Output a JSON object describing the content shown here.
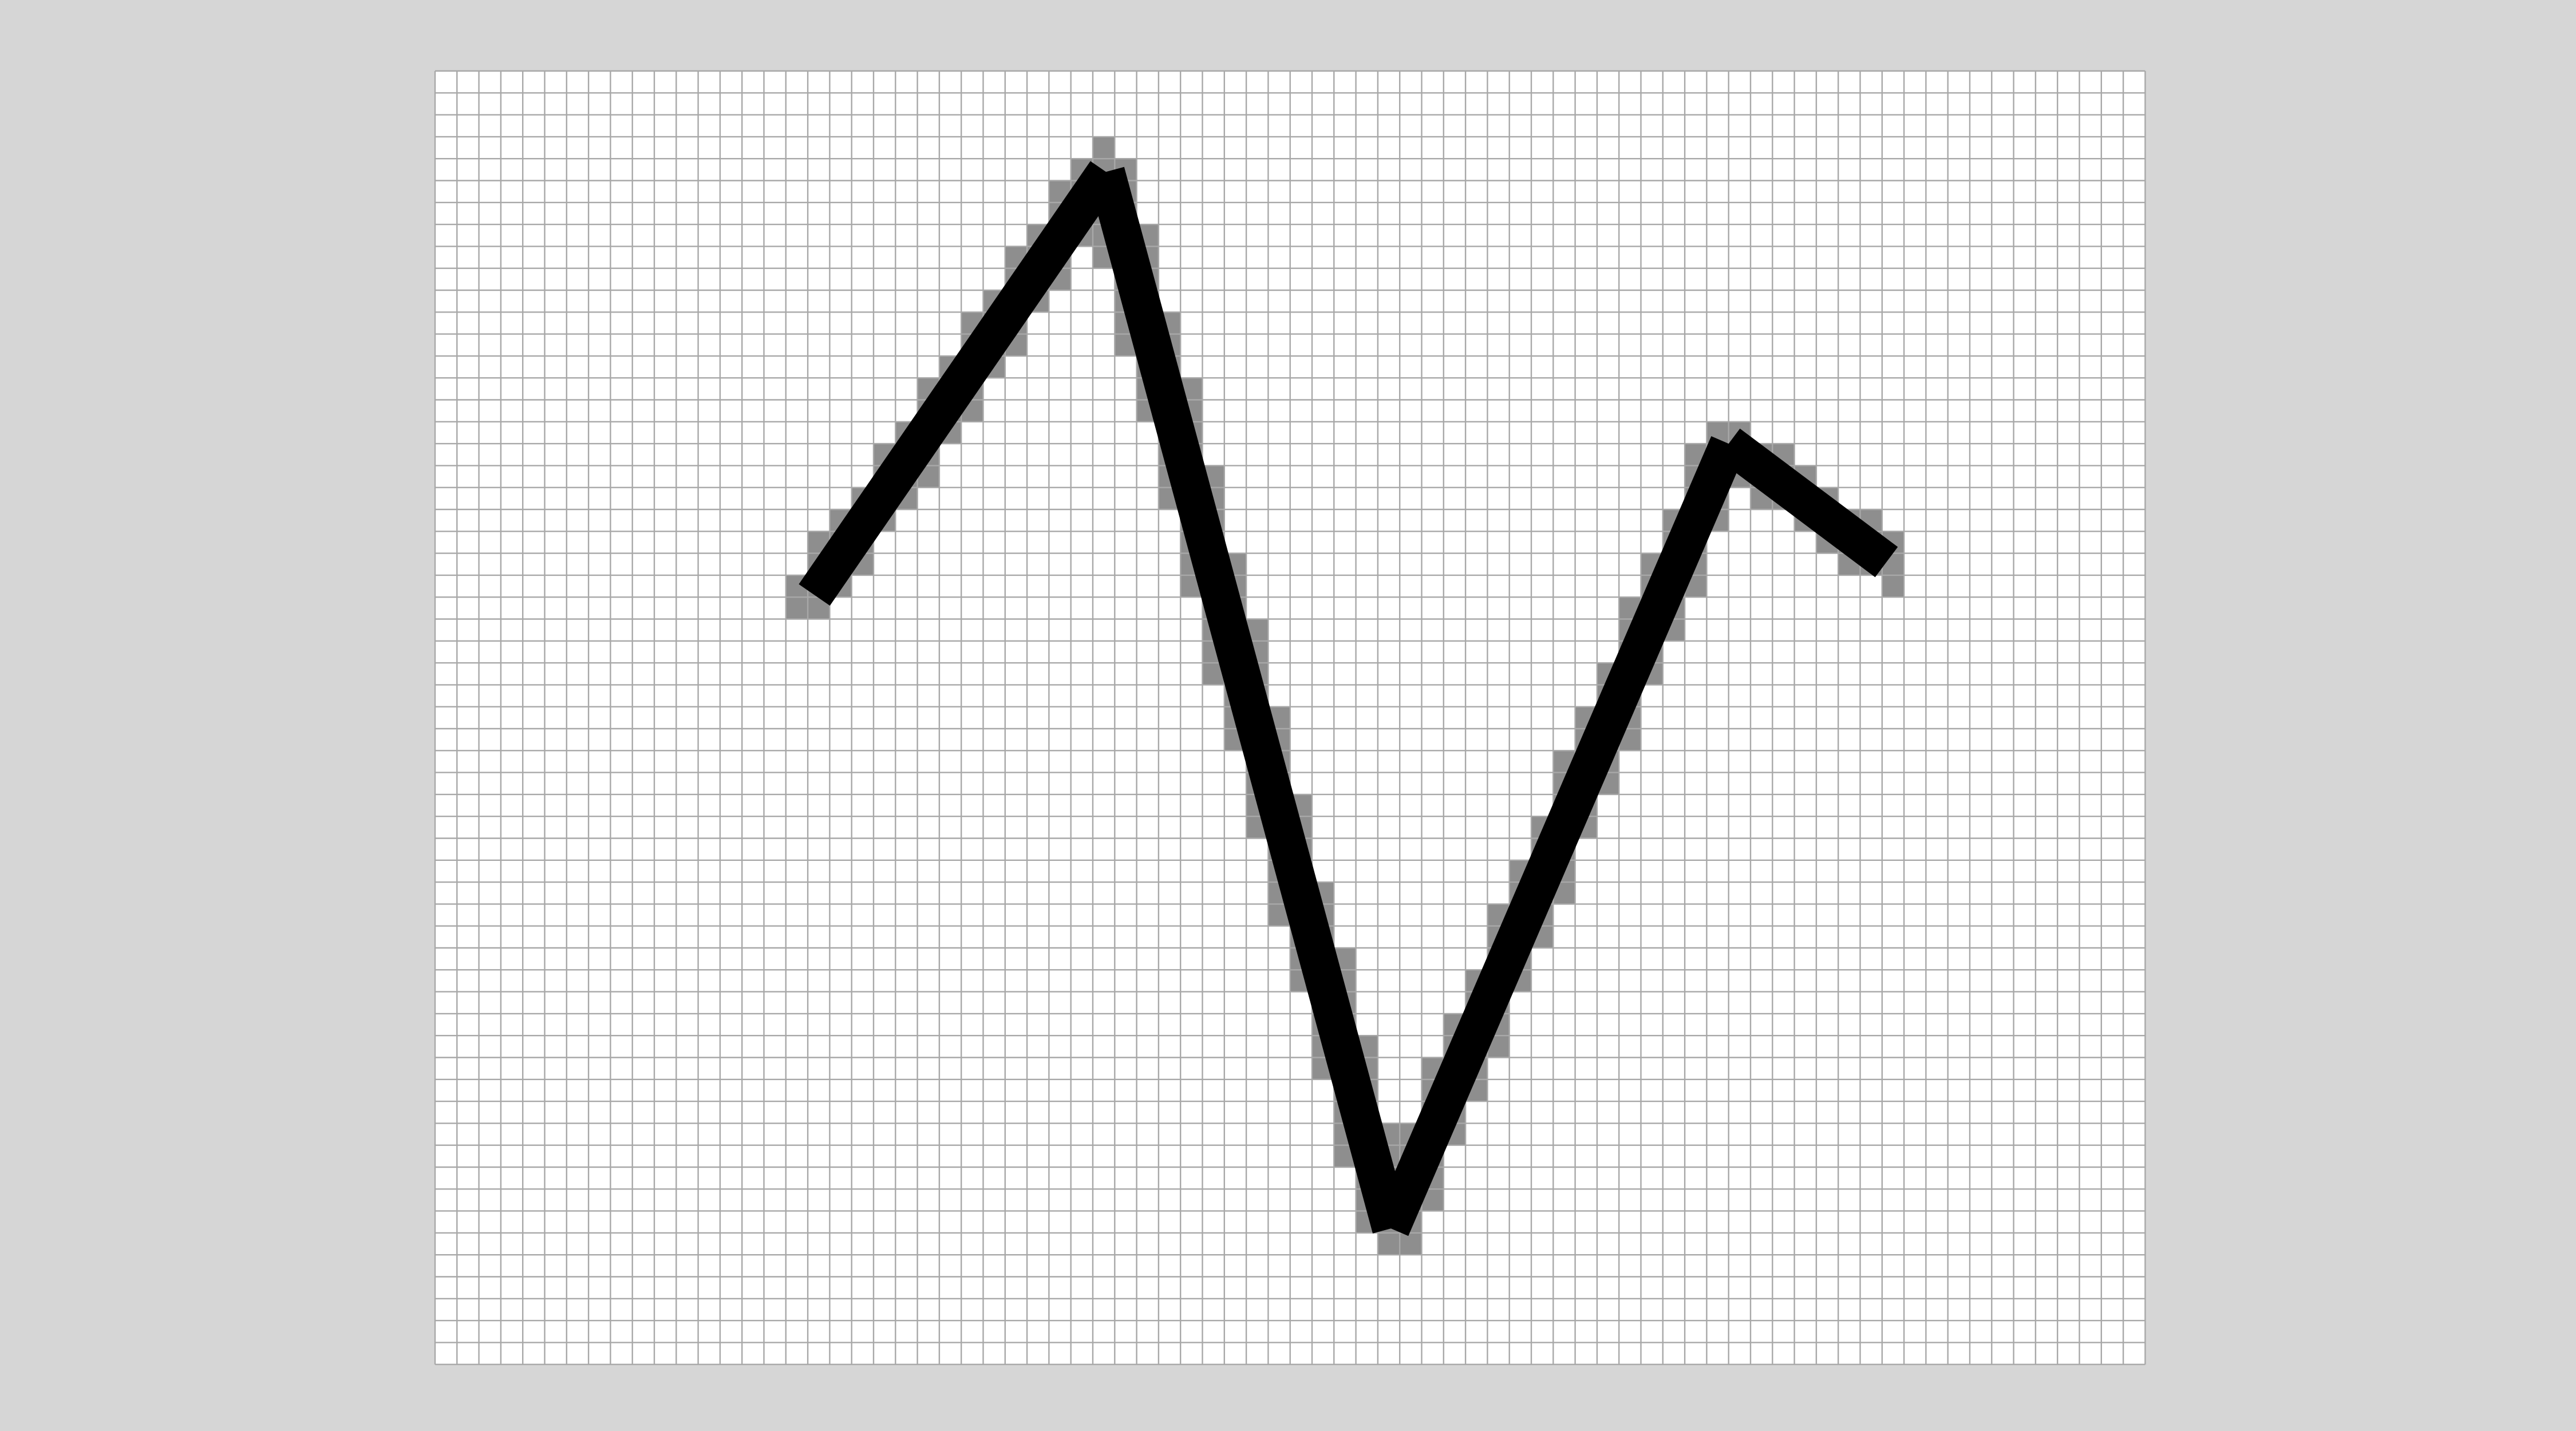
{
  "colors": {
    "page_background": "#d6d6d6",
    "grid_background": "#ffffff",
    "grid_line": "#a8a8a8",
    "rasterized_cell": "#8e8e8e",
    "ideal_line": "#000000"
  },
  "grid": {
    "columns": 78,
    "rows": 59
  },
  "polyline": {
    "vertices": [
      {
        "col": 17.3,
        "row": 23.9
      },
      {
        "col": 30.6,
        "row": 4.6
      },
      {
        "col": 43.6,
        "row": 52.8
      },
      {
        "col": 59.0,
        "row": 17.0
      },
      {
        "col": 66.2,
        "row": 22.4
      }
    ]
  }
}
